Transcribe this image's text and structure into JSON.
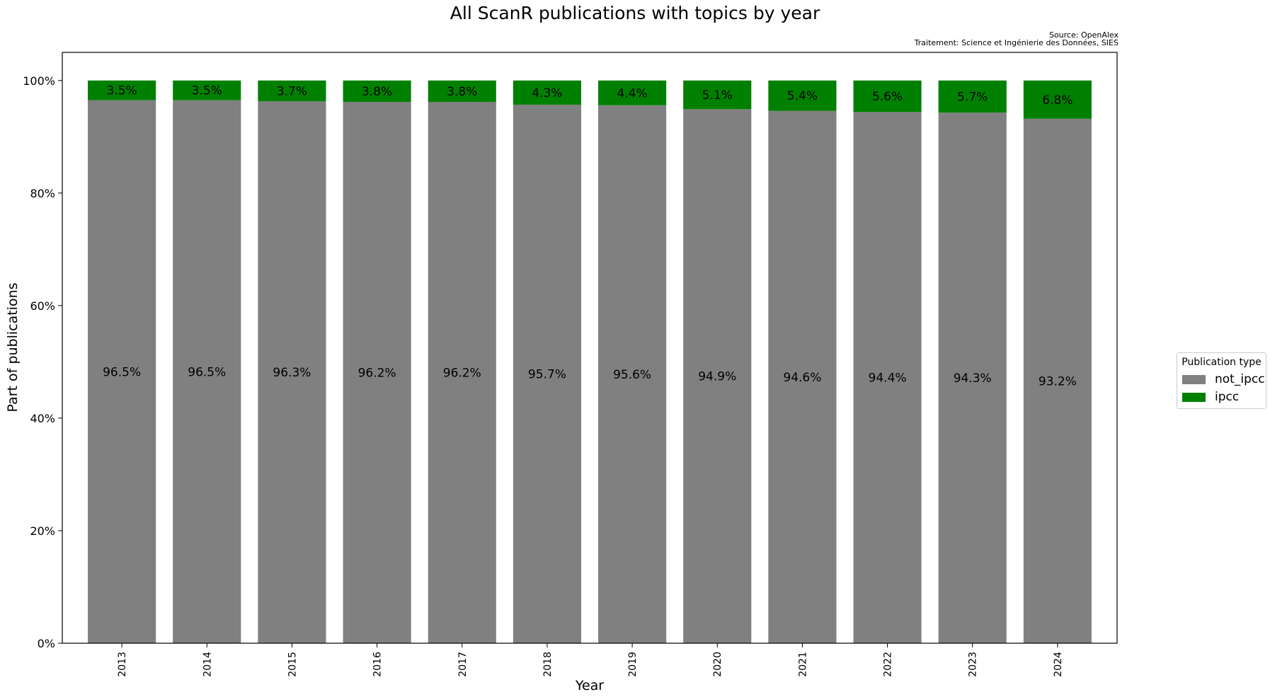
{
  "chart_data": {
    "type": "bar",
    "stacked": true,
    "title": "All ScanR publications with topics by year",
    "source_lines": [
      "Source: OpenAlex",
      "Traitement: Science et Ingénierie des Données, SIES"
    ],
    "xlabel": "Year",
    "ylabel": "Part of publications",
    "ylim": [
      0,
      105
    ],
    "yticks": [
      "0%",
      "20%",
      "40%",
      "60%",
      "80%",
      "100%"
    ],
    "ytick_values": [
      0,
      20,
      40,
      60,
      80,
      100
    ],
    "categories": [
      "2013",
      "2014",
      "2015",
      "2016",
      "2017",
      "2018",
      "2019",
      "2020",
      "2021",
      "2022",
      "2023",
      "2024"
    ],
    "series": [
      {
        "name": "not_ipcc",
        "color": "#808080",
        "values": [
          96.5,
          96.5,
          96.3,
          96.2,
          96.2,
          95.7,
          95.6,
          94.9,
          94.6,
          94.4,
          94.3,
          93.2
        ],
        "labels": [
          "96.5%",
          "96.5%",
          "96.3%",
          "96.2%",
          "96.2%",
          "95.7%",
          "95.6%",
          "94.9%",
          "94.6%",
          "94.4%",
          "94.3%",
          "93.2%"
        ]
      },
      {
        "name": "ipcc",
        "color": "#008000",
        "values": [
          3.5,
          3.5,
          3.7,
          3.8,
          3.8,
          4.3,
          4.4,
          5.1,
          5.4,
          5.6,
          5.7,
          6.8
        ],
        "labels": [
          "3.5%",
          "3.5%",
          "3.7%",
          "3.8%",
          "3.8%",
          "4.3%",
          "4.4%",
          "5.1%",
          "5.4%",
          "5.6%",
          "5.7%",
          "6.8%"
        ]
      }
    ],
    "legend": {
      "title": "Publication type",
      "position": "outside-right"
    },
    "grid": false
  }
}
